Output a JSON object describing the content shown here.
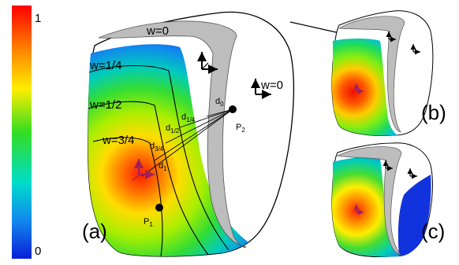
{
  "colorbar": {
    "max_label": "1",
    "min_label": "0"
  },
  "contours": {
    "w0_top": "w=0",
    "w_quarter": "w=1/4",
    "w_half": "w=1/2",
    "w_three_quarter": "w=3/4",
    "w0_right": "w=0"
  },
  "distances": {
    "d0": {
      "base": "d",
      "sub": "0"
    },
    "d_quarter": {
      "base": "d",
      "sub": "1/4"
    },
    "d_half": {
      "base": "d",
      "sub": "1/2"
    },
    "d_three_quarter": {
      "base": "d",
      "sub": "3/4"
    },
    "d1": {
      "base": "d",
      "sub": "1"
    }
  },
  "points": {
    "p1": {
      "base": "P",
      "sub": "1"
    },
    "p2": {
      "base": "P",
      "sub": "2"
    }
  },
  "panels": {
    "a": "(a)",
    "b": "(b)",
    "c": "(c)"
  },
  "colors": {
    "hot": "#ff1a00",
    "warm": "#ffcc00",
    "mid": "#33dd33",
    "cool": "#00bbee",
    "cold": "#1133dd",
    "bone": "#c0c0c0"
  }
}
